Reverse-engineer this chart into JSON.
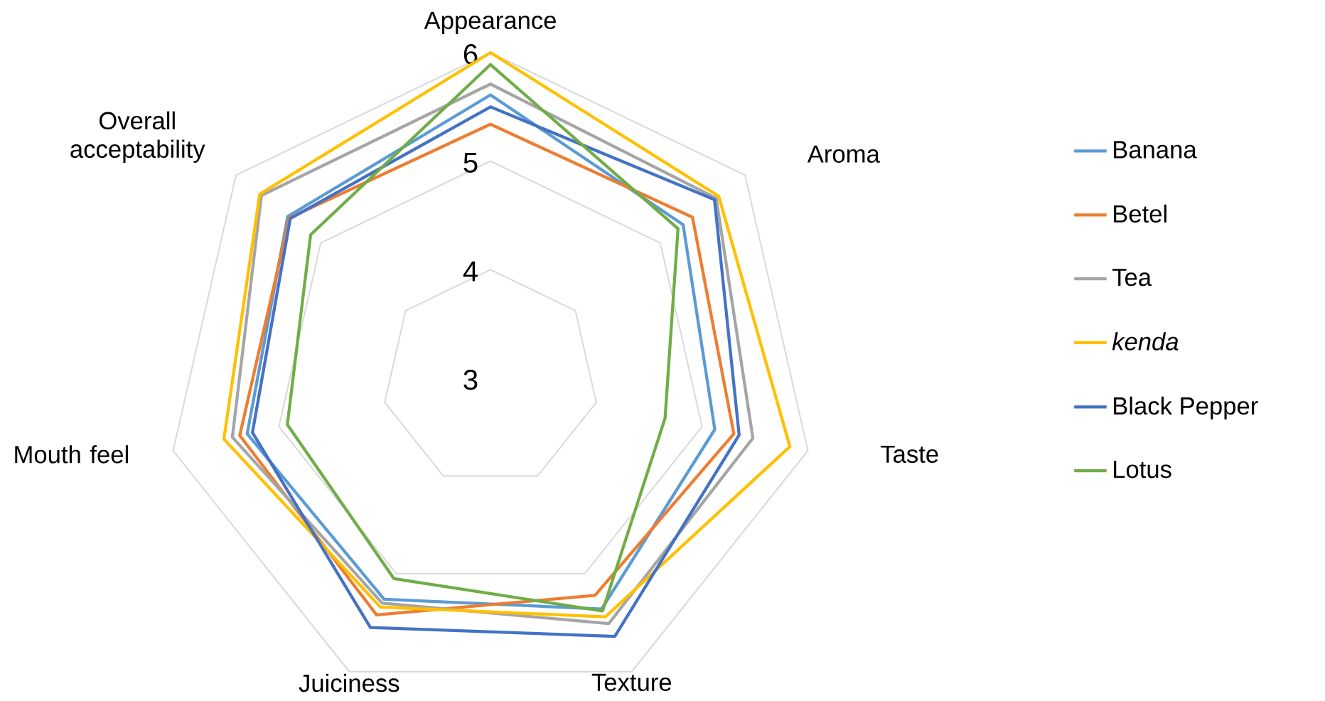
{
  "chart_data": {
    "type": "radar",
    "categories": [
      "Appearance",
      "Aroma",
      "Taste",
      "Texture",
      "Juiciness",
      "Mouth feel",
      "Overall acceptability"
    ],
    "ylim": [
      3,
      6
    ],
    "yticks": [
      3,
      4,
      5,
      6
    ],
    "grid": true,
    "legend": "right",
    "marker": "none",
    "line_style": "solid",
    "series": [
      {
        "name": "Banana",
        "color": "#5b9bd5",
        "values": [
          5.61,
          5.27,
          5.12,
          5.36,
          5.26,
          5.3,
          5.39
        ]
      },
      {
        "name": "Betel",
        "color": "#ed7d31",
        "values": [
          5.34,
          5.38,
          5.3,
          5.22,
          5.42,
          5.37,
          5.37
        ]
      },
      {
        "name": "Tea",
        "color": "#a5a5a5",
        "values": [
          5.71,
          5.66,
          5.48,
          5.51,
          5.3,
          5.44,
          5.7
        ]
      },
      {
        "name": "*kenda*",
        "color": "#ffc000",
        "values": [
          6.0,
          5.69,
          5.83,
          5.44,
          5.34,
          5.52,
          5.72
        ]
      },
      {
        "name": "Black Pepper",
        "color": "#4472c4",
        "values": [
          5.5,
          5.64,
          5.35,
          5.64,
          5.55,
          5.25,
          5.36
        ]
      },
      {
        "name": "Lotus",
        "color": "#70ad47",
        "values": [
          5.89,
          5.21,
          4.65,
          5.38,
          5.05,
          4.92,
          5.12
        ]
      }
    ]
  }
}
